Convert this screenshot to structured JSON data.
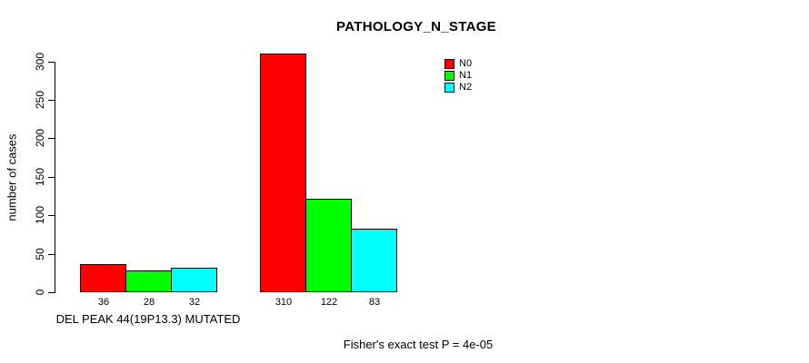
{
  "chart_data": {
    "type": "bar",
    "title": "PATHOLOGY_N_STAGE",
    "ylabel": "number of cases",
    "xlabel": "",
    "ylim": [
      0,
      320
    ],
    "yticks": [
      0,
      50,
      100,
      150,
      200,
      250,
      300
    ],
    "grid": false,
    "value_labels": true,
    "legend": {
      "position": "top-right",
      "entries": [
        {
          "label": "N0",
          "color": "#FF0000"
        },
        {
          "label": "N1",
          "color": "#00FF00"
        },
        {
          "label": "N2",
          "color": "#00FFFF"
        }
      ]
    },
    "groups": [
      {
        "label": "DEL PEAK 44(19P13.3) MUTATED",
        "values": [
          36,
          28,
          32
        ]
      },
      {
        "label": "",
        "values": [
          310,
          122,
          83
        ]
      }
    ],
    "series": [
      {
        "name": "N0",
        "color": "#FF0000",
        "values": [
          36,
          310
        ]
      },
      {
        "name": "N1",
        "color": "#00FF00",
        "values": [
          28,
          122
        ]
      },
      {
        "name": "N2",
        "color": "#00FFFF",
        "values": [
          32,
          83
        ]
      }
    ],
    "annotation": "Fisher's exact test P = 4e-05"
  }
}
